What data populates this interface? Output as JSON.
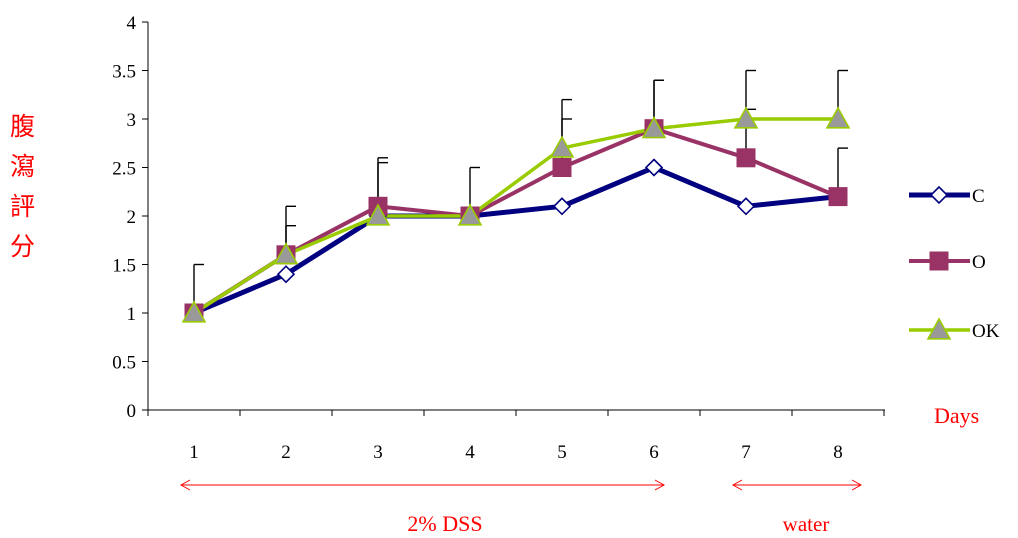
{
  "chart_data": {
    "type": "line",
    "ylabel_chars": [
      "腹",
      "瀉",
      "評",
      "分"
    ],
    "xlabel": "Days",
    "categories": [
      "1",
      "2",
      "3",
      "4",
      "5",
      "6",
      "7",
      "8"
    ],
    "x": [
      1,
      2,
      3,
      4,
      5,
      6,
      7,
      8
    ],
    "ylim": [
      0,
      4
    ],
    "yticks": [
      "0",
      "0.5",
      "1",
      "1.5",
      "2",
      "2.5",
      "3",
      "3.5",
      "4"
    ],
    "ytick_values": [
      0,
      0.5,
      1,
      1.5,
      2,
      2.5,
      3,
      3.5,
      4
    ],
    "grid": false,
    "legend_position": "right",
    "series": [
      {
        "name": "C",
        "values": [
          1.0,
          1.4,
          2.0,
          2.0,
          2.1,
          2.5,
          2.1,
          2.2
        ],
        "error_upper": [
          null,
          null,
          null,
          null,
          null,
          null,
          null,
          null
        ],
        "color": "#000080",
        "marker": "diamond"
      },
      {
        "name": "O",
        "values": [
          1.0,
          1.6,
          2.1,
          2.0,
          2.5,
          2.9,
          2.6,
          2.2
        ],
        "error_upper": [
          1.5,
          2.1,
          2.6,
          2.5,
          3.0,
          3.4,
          3.1,
          2.7
        ],
        "color": "#993366",
        "marker": "square"
      },
      {
        "name": "OK",
        "values": [
          1.0,
          1.6,
          2.0,
          2.0,
          2.7,
          2.9,
          3.0,
          3.0
        ],
        "error_upper": [
          null,
          1.9,
          2.55,
          null,
          3.2,
          3.4,
          3.5,
          3.5
        ],
        "color": "#99cc00",
        "marker": "triangle"
      }
    ],
    "annotations": [
      {
        "text": "2% DSS",
        "from_day": 1,
        "to_day": 6
      },
      {
        "text": "water",
        "from_day": 7,
        "to_day": 8
      }
    ],
    "colors": {
      "axis": "#000000",
      "annotation": "#ff0000",
      "marker_fill_gray": "#999999"
    }
  }
}
